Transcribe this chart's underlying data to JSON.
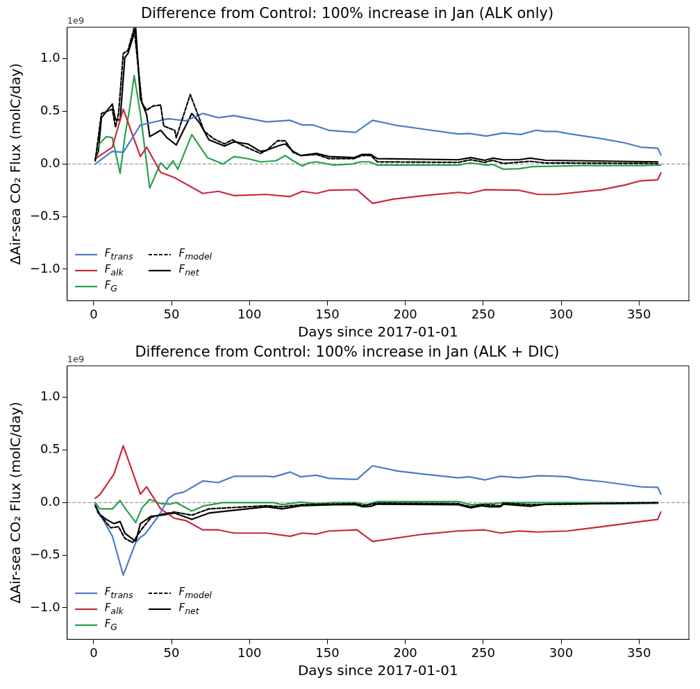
{
  "chart_data": [
    {
      "type": "line",
      "title": "Difference from Control: 100% increase in Jan (ALK only)",
      "xlabel": "Days since 2017-01-01",
      "ylabel": "ΔAir-sea CO₂ Flux (molC/day)",
      "annotations": [
        "1e9"
      ],
      "xlim": [
        -17,
        382
      ],
      "ylim": [
        -1.3,
        1.3
      ],
      "xticks": [
        0,
        50,
        100,
        150,
        200,
        250,
        300,
        350
      ],
      "yticks": [
        {
          "value": -1,
          "label": "−1.0"
        },
        {
          "value": -0.5,
          "label": "−0.5"
        },
        {
          "value": 0,
          "label": "0.0"
        },
        {
          "value": 0.5,
          "label": "0.5"
        },
        {
          "value": 1,
          "label": "1.0"
        }
      ],
      "legend": "bottom left",
      "marker": "none",
      "ref_lines": [
        {
          "axis": "y",
          "value": 0,
          "color": "#999999",
          "line_style": "dashed"
        }
      ],
      "series": [
        {
          "name": "F$_{trans}$",
          "color": "#4a7cc4",
          "line_style": "solid",
          "x": [
            1,
            12,
            19,
            30,
            48,
            59,
            70,
            80,
            90,
            111,
            126,
            134,
            141,
            151,
            168,
            179,
            195,
            212,
            234,
            241,
            252,
            263,
            274,
            284,
            290,
            297,
            306,
            326,
            341,
            351,
            362,
            364
          ],
          "values": [
            0,
            0.12,
            0.11,
            0.37,
            0.43,
            0.41,
            0.48,
            0.44,
            0.46,
            0.4,
            0.415,
            0.37,
            0.37,
            0.32,
            0.3,
            0.415,
            0.365,
            0.33,
            0.285,
            0.29,
            0.265,
            0.295,
            0.28,
            0.32,
            0.31,
            0.31,
            0.285,
            0.24,
            0.2,
            0.16,
            0.15,
            0.085
          ]
        },
        {
          "name": "F$_{alk}$",
          "color": "#c8283c",
          "line_style": "solid",
          "x": [
            1,
            4,
            12,
            19,
            30,
            34,
            43,
            52,
            70,
            80,
            90,
            111,
            126,
            134,
            143,
            151,
            169,
            179,
            192,
            212,
            234,
            241,
            251,
            273,
            285,
            297,
            326,
            341,
            351,
            362,
            364
          ],
          "values": [
            0.05,
            0.08,
            0.16,
            0.52,
            0.07,
            0.16,
            -0.08,
            -0.13,
            -0.28,
            -0.26,
            -0.3,
            -0.29,
            -0.31,
            -0.26,
            -0.28,
            -0.25,
            -0.245,
            -0.375,
            -0.335,
            -0.3,
            -0.27,
            -0.28,
            -0.245,
            -0.25,
            -0.29,
            -0.29,
            -0.245,
            -0.2,
            -0.16,
            -0.15,
            -0.085
          ]
        },
        {
          "name": "F$_{G}$",
          "color": "#27a04a",
          "line_style": "solid",
          "x": [
            1,
            3,
            8,
            12,
            17,
            20,
            23,
            26,
            30,
            36,
            43,
            47,
            51,
            54,
            63,
            73,
            83,
            90,
            99,
            107,
            117,
            123,
            128,
            134,
            138,
            143,
            154,
            166,
            171,
            177,
            182,
            234,
            242,
            252,
            256,
            263,
            273,
            282,
            314,
            351,
            364
          ],
          "values": [
            0.03,
            0.18,
            0.26,
            0.25,
            -0.09,
            0.26,
            0.52,
            0.84,
            0.48,
            -0.23,
            0.01,
            -0.05,
            0.03,
            -0.05,
            0.28,
            0.06,
            0,
            0.07,
            0.05,
            0.02,
            0.03,
            0.08,
            0.03,
            -0.02,
            0.01,
            0.02,
            -0.01,
            0,
            0.02,
            0.02,
            -0.01,
            -0.01,
            0.01,
            -0.01,
            -0.005,
            -0.05,
            -0.045,
            -0.025,
            -0.015,
            -0.015,
            -0.01
          ]
        },
        {
          "name": "F$_{model}$",
          "color": "#000000",
          "line_style": "dashed",
          "x": [
            1,
            5,
            12,
            14,
            16,
            19,
            22,
            26,
            31,
            34,
            38,
            43,
            45,
            52,
            53,
            62,
            71,
            77,
            84,
            89,
            95,
            107,
            111,
            118,
            123,
            128,
            133,
            143,
            151,
            167,
            172,
            178,
            182,
            234,
            242,
            251,
            256,
            263,
            280,
            290,
            362
          ],
          "values": [
            0.03,
            0.48,
            0.52,
            0.35,
            0.48,
            1.05,
            1.08,
            1.29,
            0.58,
            0.51,
            0.55,
            0.56,
            0.36,
            0.32,
            0.25,
            0.66,
            0.31,
            0.24,
            0.19,
            0.23,
            0.18,
            0.1,
            0.13,
            0.22,
            0.22,
            0.11,
            0.08,
            0.09,
            0.05,
            0.05,
            0.08,
            0.08,
            0.02,
            0.015,
            0.04,
            0.015,
            0.035,
            0.005,
            0.025,
            0.01,
            0.005
          ]
        },
        {
          "name": "F$_{net}$",
          "color": "#000000",
          "line_style": "solid",
          "x": [
            1,
            3,
            5,
            12,
            14,
            17,
            20,
            22,
            27,
            30,
            34,
            36,
            43,
            47,
            53,
            63,
            68,
            74,
            84,
            90,
            99,
            107,
            111,
            119,
            123,
            128,
            133,
            143,
            151,
            167,
            172,
            178,
            182,
            234,
            242,
            251,
            256,
            263,
            273,
            280,
            290,
            362
          ],
          "values": [
            0.05,
            0.12,
            0.44,
            0.57,
            0.42,
            0.42,
            1.01,
            1.05,
            1.29,
            0.62,
            0.47,
            0.26,
            0.32,
            0.25,
            0.18,
            0.48,
            0.39,
            0.23,
            0.17,
            0.21,
            0.19,
            0.12,
            0.13,
            0.175,
            0.19,
            0.12,
            0.08,
            0.1,
            0.07,
            0.06,
            0.09,
            0.09,
            0.05,
            0.04,
            0.06,
            0.035,
            0.055,
            0.04,
            0.04,
            0.055,
            0.035,
            0.02
          ]
        }
      ]
    },
    {
      "type": "line",
      "title": "Difference from Control: 100% increase in Jan (ALK + DIC)",
      "xlabel": "Days since 2017-01-01",
      "ylabel": "ΔAir-sea CO₂ Flux (molC/day)",
      "annotations": [
        "1e9"
      ],
      "xlim": [
        -17,
        382
      ],
      "ylim": [
        -1.3,
        1.3
      ],
      "xticks": [
        0,
        50,
        100,
        150,
        200,
        250,
        300,
        350
      ],
      "yticks": [
        {
          "value": -1,
          "label": "−1.0"
        },
        {
          "value": -0.5,
          "label": "−0.5"
        },
        {
          "value": 0,
          "label": "0.0"
        },
        {
          "value": 0.5,
          "label": "0.5"
        },
        {
          "value": 1,
          "label": "1.0"
        }
      ],
      "legend": "bottom left",
      "marker": "none",
      "ref_lines": [
        {
          "axis": "y",
          "value": 0,
          "color": "#999999",
          "line_style": "dashed"
        }
      ],
      "series": [
        {
          "name": "F$_{trans}$",
          "color": "#4a7cc4",
          "line_style": "solid",
          "x": [
            1,
            3,
            12,
            19,
            27,
            30,
            33,
            42,
            48,
            52,
            58,
            70,
            80,
            90,
            111,
            116,
            126,
            133,
            143,
            151,
            169,
            179,
            195,
            212,
            234,
            241,
            251,
            261,
            273,
            285,
            297,
            304,
            312,
            326,
            341,
            351,
            362,
            364
          ],
          "values": [
            -0.02,
            -0.08,
            -0.32,
            -0.69,
            -0.38,
            -0.33,
            -0.3,
            -0.12,
            0.04,
            0.08,
            0.1,
            0.205,
            0.19,
            0.25,
            0.25,
            0.245,
            0.29,
            0.245,
            0.26,
            0.23,
            0.22,
            0.35,
            0.3,
            0.27,
            0.235,
            0.245,
            0.215,
            0.25,
            0.235,
            0.255,
            0.25,
            0.245,
            0.22,
            0.2,
            0.17,
            0.15,
            0.145,
            0.08
          ]
        },
        {
          "name": "F$_{alk}$",
          "color": "#c8283c",
          "line_style": "solid",
          "x": [
            1,
            4,
            13,
            19,
            30,
            34,
            43,
            52,
            59,
            70,
            80,
            90,
            111,
            126,
            134,
            143,
            151,
            169,
            179,
            212,
            234,
            251,
            261,
            273,
            285,
            304,
            326,
            341,
            351,
            362,
            364
          ],
          "values": [
            0.04,
            0.075,
            0.27,
            0.54,
            0.08,
            0.15,
            -0.06,
            -0.15,
            -0.17,
            -0.26,
            -0.26,
            -0.29,
            -0.29,
            -0.32,
            -0.29,
            -0.3,
            -0.27,
            -0.26,
            -0.37,
            -0.3,
            -0.27,
            -0.26,
            -0.29,
            -0.27,
            -0.28,
            -0.27,
            -0.23,
            -0.2,
            -0.18,
            -0.16,
            -0.09
          ]
        },
        {
          "name": "F$_{G}$",
          "color": "#27a04a",
          "line_style": "solid",
          "x": [
            1,
            4,
            12,
            17,
            20,
            27,
            31,
            36,
            43,
            49,
            53,
            63,
            71,
            83,
            115,
            121,
            133,
            143,
            154,
            168,
            175,
            182,
            234,
            242,
            256,
            263,
            362
          ],
          "values": [
            0,
            -0.06,
            -0.06,
            0.02,
            -0.05,
            -0.19,
            -0.05,
            0.03,
            -0.01,
            -0.015,
            0,
            -0.08,
            -0.03,
            0,
            0,
            -0.02,
            0.005,
            -0.01,
            0,
            0,
            -0.02,
            0.01,
            0.01,
            -0.02,
            -0.01,
            0,
            0
          ]
        },
        {
          "name": "F$_{model}$",
          "color": "#000000",
          "line_style": "dashed",
          "x": [
            1,
            4,
            11,
            16,
            20,
            25,
            31,
            37,
            44,
            52,
            63,
            74,
            86,
            111,
            121,
            133,
            168,
            173,
            182,
            234,
            242,
            249,
            261,
            263,
            280,
            362
          ],
          "values": [
            -0.03,
            -0.12,
            -0.24,
            -0.23,
            -0.34,
            -0.38,
            -0.25,
            -0.14,
            -0.11,
            -0.09,
            -0.12,
            -0.06,
            -0.05,
            -0.03,
            -0.04,
            -0.02,
            -0.01,
            -0.03,
            -0.005,
            -0.01,
            -0.04,
            -0.02,
            -0.03,
            -0.005,
            -0.02,
            0
          ]
        },
        {
          "name": "F$_{net}$",
          "color": "#000000",
          "line_style": "solid",
          "x": [
            1,
            3,
            8,
            13,
            17,
            20,
            27,
            30,
            37,
            44,
            52,
            63,
            74,
            86,
            111,
            121,
            133,
            154,
            168,
            173,
            178,
            182,
            234,
            242,
            249,
            254,
            261,
            263,
            280,
            290,
            362
          ],
          "values": [
            -0.02,
            -0.1,
            -0.16,
            -0.2,
            -0.18,
            -0.29,
            -0.37,
            -0.2,
            -0.13,
            -0.12,
            -0.1,
            -0.16,
            -0.1,
            -0.08,
            -0.04,
            -0.06,
            -0.03,
            -0.02,
            -0.02,
            -0.04,
            -0.035,
            -0.015,
            -0.02,
            -0.05,
            -0.03,
            -0.04,
            -0.04,
            -0.015,
            -0.035,
            -0.015,
            -0.005
          ]
        }
      ]
    }
  ]
}
